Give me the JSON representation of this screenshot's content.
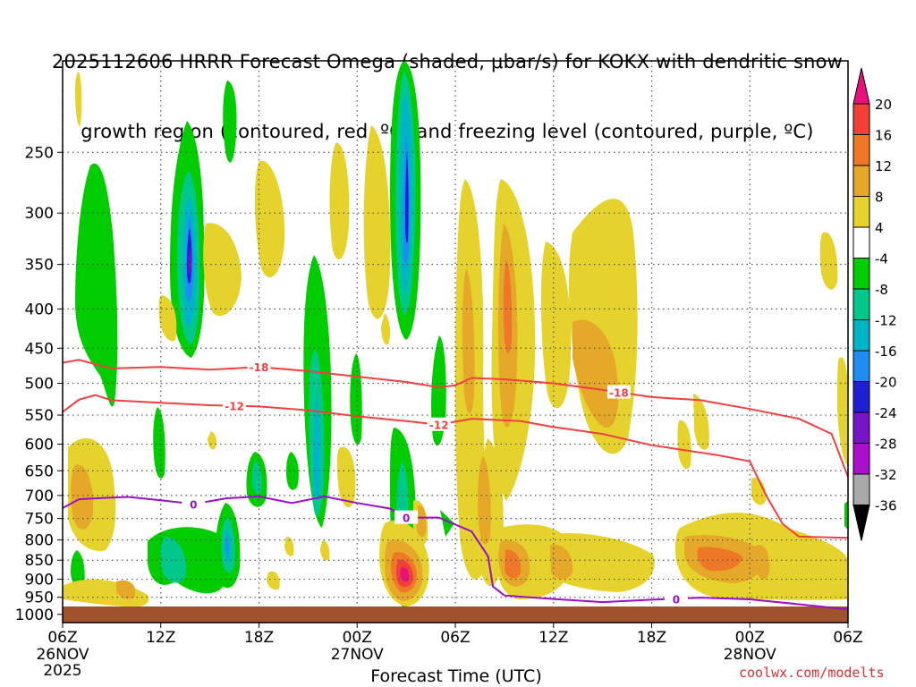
{
  "title": {
    "line1": "2025112606 HRRR Forecast Omega (shaded, μbar/s) for KOKX with dendritic snow",
    "line2": "growth region (contoured, red, ºC) and freezing level (contoured, purple, ºC)"
  },
  "footer": {
    "xlabel": "Forecast Time (UTC)",
    "credit": "coolwx.com/modelts"
  },
  "colors": {
    "ground": "#a0522d",
    "dgz_contour": "#f04040",
    "freezing_contour": "#9a10c8",
    "grid": "#555555"
  },
  "chart_data": {
    "type": "heatmap",
    "xlabel": "Forecast Time (UTC)",
    "ylabel": "",
    "x_range_hours": [
      0,
      48
    ],
    "y_log_pressure": true,
    "y_range_mb": [
      1025,
      190
    ],
    "grid": true,
    "x_ticks": [
      {
        "hour": 0,
        "label": "06Z",
        "date": "26NOV",
        "year": "2025"
      },
      {
        "hour": 6,
        "label": "12Z"
      },
      {
        "hour": 12,
        "label": "18Z"
      },
      {
        "hour": 18,
        "label": "00Z",
        "date": "27NOV"
      },
      {
        "hour": 24,
        "label": "06Z"
      },
      {
        "hour": 30,
        "label": "12Z"
      },
      {
        "hour": 36,
        "label": "18Z"
      },
      {
        "hour": 42,
        "label": "00Z",
        "date": "28NOV"
      },
      {
        "hour": 48,
        "label": "06Z"
      }
    ],
    "y_ticks": [
      250,
      300,
      350,
      400,
      450,
      500,
      550,
      600,
      650,
      700,
      750,
      800,
      850,
      900,
      950,
      1000
    ],
    "colorbar": {
      "labels": [
        "20",
        "16",
        "12",
        "8",
        "4",
        "-4",
        "-8",
        "-12",
        "-16",
        "-20",
        "-24",
        "-28",
        "-32",
        "-36"
      ],
      "colors": [
        "#e8107a",
        "#f04038",
        "#ee7828",
        "#e6a828",
        "#e6d22c",
        "#ffffff",
        "#00cc00",
        "#00c88a",
        "#00b4c8",
        "#1e8cf0",
        "#1e1ed2",
        "#7814c8",
        "#aa10cc",
        "#a8a8a8",
        "#000000"
      ]
    },
    "contours": [
      {
        "label": "-18",
        "points": [
          [
            0,
            470
          ],
          [
            1,
            466
          ],
          [
            2,
            472
          ],
          [
            3,
            478
          ],
          [
            6,
            476
          ],
          [
            9,
            480
          ],
          [
            12,
            476
          ],
          [
            15,
            482
          ],
          [
            18,
            490
          ],
          [
            21,
            498
          ],
          [
            23,
            506
          ],
          [
            24,
            503
          ],
          [
            25,
            492
          ],
          [
            27,
            494
          ],
          [
            30,
            500
          ],
          [
            33,
            510
          ],
          [
            36,
            521
          ],
          [
            39,
            526
          ],
          [
            42,
            540
          ],
          [
            45,
            556
          ],
          [
            47,
            582
          ],
          [
            48,
            662
          ]
        ]
      },
      {
        "label": "-12",
        "points": [
          [
            0,
            545
          ],
          [
            1,
            525
          ],
          [
            2,
            518
          ],
          [
            3,
            526
          ],
          [
            6,
            530
          ],
          [
            9,
            534
          ],
          [
            12,
            536
          ],
          [
            15,
            542
          ],
          [
            18,
            552
          ],
          [
            21,
            560
          ],
          [
            23,
            566
          ],
          [
            25,
            556
          ],
          [
            28,
            560
          ],
          [
            30,
            570
          ],
          [
            33,
            582
          ],
          [
            36,
            602
          ],
          [
            40,
            620
          ],
          [
            42,
            632
          ],
          [
            43,
            700
          ],
          [
            44,
            762
          ],
          [
            45,
            792
          ],
          [
            48,
            795
          ]
        ]
      },
      {
        "label": "0",
        "points": [
          [
            0,
            727
          ],
          [
            1,
            708
          ],
          [
            2,
            706
          ],
          [
            4,
            703
          ],
          [
            6,
            710
          ],
          [
            8,
            718
          ],
          [
            10,
            706
          ],
          [
            12,
            702
          ],
          [
            14,
            716
          ],
          [
            16,
            702
          ],
          [
            18,
            716
          ],
          [
            20,
            728
          ],
          [
            21,
            748
          ],
          [
            23,
            748
          ],
          [
            25,
            780
          ],
          [
            26,
            840
          ],
          [
            26.3,
            920
          ],
          [
            27,
            945
          ],
          [
            30,
            955
          ],
          [
            33,
            964
          ],
          [
            36,
            957
          ],
          [
            39,
            951
          ],
          [
            42,
            956
          ],
          [
            45,
            970
          ],
          [
            48,
            985
          ]
        ]
      }
    ]
  }
}
